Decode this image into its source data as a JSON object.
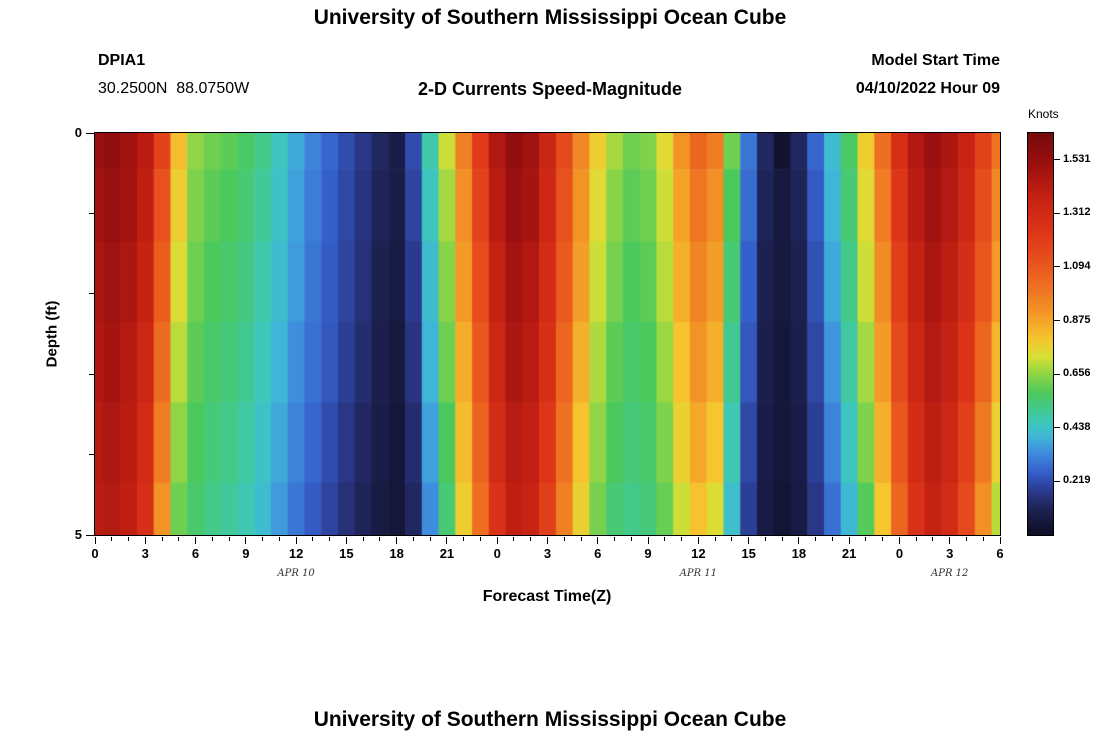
{
  "header": {
    "title": "University of Southern Mississippi Ocean Cube",
    "station_id": "DPIA1",
    "coordinates": "30.2500N  88.0750W",
    "subtitle": "2-D Currents Speed-Magnitude",
    "model_start_label": "Model Start Time",
    "model_start_value": "04/10/2022 Hour 09"
  },
  "footer": {
    "next_title": "University of Southern Mississippi Ocean Cube"
  },
  "chart_data": {
    "type": "heatmap",
    "title": "2-D Currents Speed-Magnitude",
    "xlabel": "Forecast Time(Z)",
    "ylabel": "Depth (ft)",
    "colorbar_label": "Knots",
    "colorbar_range": [
      0.0,
      1.64
    ],
    "colorbar_ticks": [
      {
        "label": "1.531",
        "value": 1.531
      },
      {
        "label": "1.312",
        "value": 1.312
      },
      {
        "label": "1.094",
        "value": 1.094
      },
      {
        "label": "0.875",
        "value": 0.875
      },
      {
        "label": "0.656",
        "value": 0.656
      },
      {
        "label": "0.438",
        "value": 0.438
      },
      {
        "label": "0.219",
        "value": 0.219
      }
    ],
    "x_range_hours": [
      0,
      54
    ],
    "time_step_hours": 1,
    "x_tick_hours": [
      0,
      3,
      6,
      9,
      12,
      15,
      18,
      21,
      24,
      27,
      30,
      33,
      36,
      39,
      42,
      45,
      48,
      51,
      54
    ],
    "x_tick_labels": [
      "0",
      "3",
      "6",
      "9",
      "12",
      "15",
      "18",
      "21",
      "0",
      "3",
      "6",
      "9",
      "12",
      "15",
      "18",
      "21",
      "0",
      "3",
      "6"
    ],
    "date_labels": [
      {
        "label": "APR 10",
        "hour": 12
      },
      {
        "label": "APR 11",
        "hour": 36
      },
      {
        "label": "APR 12",
        "hour": 51
      }
    ],
    "y_ticks": [
      {
        "label": "0",
        "depth": 0
      },
      {
        "label": "5",
        "depth": 5
      }
    ],
    "y_minor_depths": [
      1,
      2,
      3,
      4
    ],
    "depth_range_ft": [
      0,
      5
    ],
    "row_boundaries_ft": [
      0,
      0.45,
      1.35,
      2.35,
      3.35,
      4.35,
      5
    ],
    "grid_knots": [
      [
        1.52,
        1.55,
        1.5,
        1.42,
        1.18,
        0.82,
        0.66,
        0.62,
        0.6,
        0.57,
        0.52,
        0.45,
        0.38,
        0.32,
        0.27,
        0.22,
        0.17,
        0.12,
        0.08,
        0.22,
        0.48,
        0.72,
        0.97,
        1.22,
        1.45,
        1.55,
        1.5,
        1.35,
        1.15,
        0.95,
        0.78,
        0.68,
        0.62,
        0.64,
        0.75,
        0.92,
        1.05,
        0.98,
        0.62,
        0.3,
        0.12,
        0.03,
        0.12,
        0.27,
        0.42,
        0.57,
        0.78,
        1.02,
        1.28,
        1.45,
        1.52,
        1.46,
        1.36,
        1.18,
        1.0
      ],
      [
        1.5,
        1.53,
        1.49,
        1.4,
        1.12,
        0.78,
        0.64,
        0.6,
        0.58,
        0.55,
        0.5,
        0.44,
        0.37,
        0.31,
        0.26,
        0.21,
        0.16,
        0.11,
        0.08,
        0.2,
        0.45,
        0.68,
        0.93,
        1.18,
        1.42,
        1.52,
        1.48,
        1.33,
        1.12,
        0.92,
        0.75,
        0.65,
        0.6,
        0.62,
        0.72,
        0.88,
        1.0,
        0.93,
        0.58,
        0.28,
        0.11,
        0.06,
        0.11,
        0.25,
        0.4,
        0.55,
        0.75,
        0.98,
        1.24,
        1.42,
        1.5,
        1.44,
        1.33,
        1.14,
        0.95
      ],
      [
        1.47,
        1.5,
        1.46,
        1.37,
        1.08,
        0.74,
        0.62,
        0.58,
        0.56,
        0.53,
        0.48,
        0.42,
        0.36,
        0.3,
        0.25,
        0.2,
        0.15,
        0.1,
        0.07,
        0.18,
        0.42,
        0.65,
        0.9,
        1.14,
        1.38,
        1.49,
        1.45,
        1.3,
        1.09,
        0.89,
        0.72,
        0.63,
        0.58,
        0.6,
        0.7,
        0.85,
        0.96,
        0.89,
        0.55,
        0.26,
        0.1,
        0.06,
        0.1,
        0.23,
        0.38,
        0.52,
        0.72,
        0.94,
        1.2,
        1.38,
        1.47,
        1.41,
        1.29,
        1.1,
        0.9
      ],
      [
        1.45,
        1.48,
        1.44,
        1.34,
        1.03,
        0.7,
        0.6,
        0.56,
        0.54,
        0.51,
        0.46,
        0.4,
        0.34,
        0.29,
        0.24,
        0.19,
        0.14,
        0.09,
        0.06,
        0.16,
        0.4,
        0.62,
        0.86,
        1.1,
        1.34,
        1.46,
        1.42,
        1.27,
        1.05,
        0.85,
        0.69,
        0.6,
        0.56,
        0.58,
        0.67,
        0.81,
        0.92,
        0.85,
        0.51,
        0.24,
        0.09,
        0.05,
        0.09,
        0.21,
        0.35,
        0.49,
        0.68,
        0.9,
        1.15,
        1.34,
        1.44,
        1.38,
        1.25,
        1.05,
        0.84
      ],
      [
        1.43,
        1.46,
        1.42,
        1.31,
        0.98,
        0.66,
        0.58,
        0.54,
        0.52,
        0.49,
        0.44,
        0.38,
        0.32,
        0.27,
        0.22,
        0.17,
        0.12,
        0.08,
        0.05,
        0.14,
        0.37,
        0.58,
        0.82,
        1.06,
        1.3,
        1.43,
        1.39,
        1.24,
        1.01,
        0.81,
        0.66,
        0.58,
        0.54,
        0.56,
        0.64,
        0.77,
        0.87,
        0.8,
        0.47,
        0.21,
        0.08,
        0.05,
        0.08,
        0.19,
        0.32,
        0.45,
        0.64,
        0.85,
        1.1,
        1.3,
        1.41,
        1.34,
        1.2,
        0.99,
        0.77
      ],
      [
        1.42,
        1.44,
        1.4,
        1.28,
        0.92,
        0.62,
        0.56,
        0.52,
        0.5,
        0.47,
        0.42,
        0.36,
        0.3,
        0.25,
        0.2,
        0.15,
        0.11,
        0.07,
        0.05,
        0.12,
        0.34,
        0.55,
        0.78,
        1.02,
        1.26,
        1.4,
        1.36,
        1.2,
        0.97,
        0.77,
        0.63,
        0.55,
        0.52,
        0.54,
        0.61,
        0.72,
        0.81,
        0.74,
        0.43,
        0.19,
        0.07,
        0.04,
        0.07,
        0.17,
        0.29,
        0.41,
        0.59,
        0.8,
        1.05,
        1.26,
        1.38,
        1.3,
        1.15,
        0.93,
        0.7
      ]
    ],
    "colormap": [
      [
        0.0,
        "#0d0d24"
      ],
      [
        0.1,
        "#1d2150"
      ],
      [
        0.18,
        "#2b3a8e"
      ],
      [
        0.26,
        "#3560cc"
      ],
      [
        0.34,
        "#3f8edd"
      ],
      [
        0.4,
        "#3fb6d8"
      ],
      [
        0.46,
        "#3ec8bb"
      ],
      [
        0.52,
        "#43c98a"
      ],
      [
        0.58,
        "#4cc95c"
      ],
      [
        0.66,
        "#90d545"
      ],
      [
        0.73,
        "#d8e036"
      ],
      [
        0.8,
        "#f6c62e"
      ],
      [
        0.9,
        "#f39a27"
      ],
      [
        1.0,
        "#ef7522"
      ],
      [
        1.12,
        "#e8511d"
      ],
      [
        1.25,
        "#dc3318"
      ],
      [
        1.4,
        "#c01f12"
      ],
      [
        1.52,
        "#9a0f0f"
      ],
      [
        1.64,
        "#770b0b"
      ]
    ]
  }
}
